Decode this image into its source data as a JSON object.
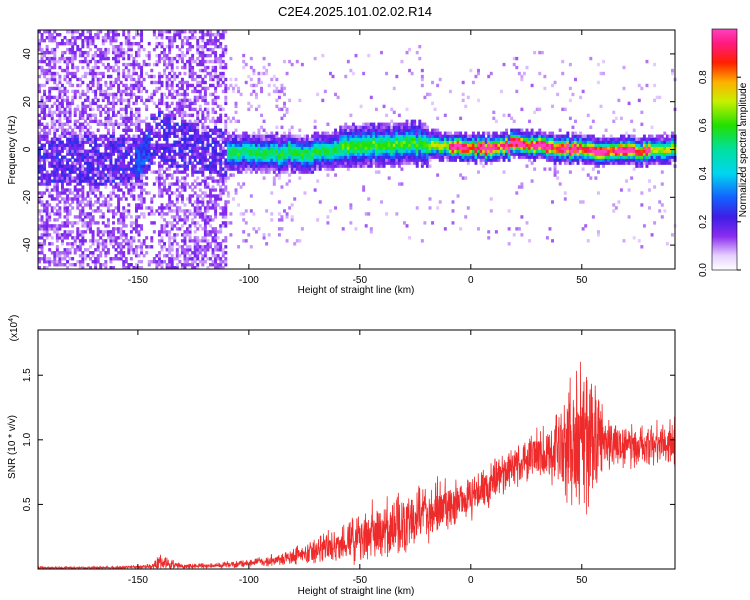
{
  "title": "C2E4.2025.101.02.02.R14",
  "colors": {
    "snr_line": "#ee2a2a",
    "axis": "#000000",
    "grid_tick": "#000000"
  },
  "chart_data": [
    {
      "type": "heatmap",
      "name": "spectrogram",
      "xlabel": "Height of straight line (km)",
      "ylabel": "Frequency (Hz)",
      "xlim": [
        -195,
        92
      ],
      "ylim": [
        -50,
        50
      ],
      "x_ticks": [
        -150,
        -100,
        -50,
        0,
        50
      ],
      "x_tick_labels": [
        "-150",
        "-100",
        "-50",
        "0",
        "50"
      ],
      "y_ticks": [
        -40,
        -20,
        0,
        20,
        40
      ],
      "y_tick_labels": [
        "-40",
        "-20",
        "0",
        "20",
        "40"
      ],
      "colorbar": {
        "label": "Normalized spectral amplitude",
        "range": [
          0,
          1
        ],
        "ticks": [
          0,
          0.2,
          0.4,
          0.6,
          0.8
        ],
        "tick_labels": [
          "0.0",
          "0.2",
          "0.4",
          "0.6",
          "0.8"
        ],
        "colormap": "rainbow (white-violet-blue-cyan-green-yellow-red-magenta)"
      },
      "band": {
        "description": "Narrow high-amplitude ridge near 0 Hz, broad low-amplitude scatter below -100 km",
        "center_track": [
          {
            "x": -150,
            "f": -5
          },
          {
            "x": -142,
            "f": 5
          },
          {
            "x": -120,
            "f": -2
          },
          {
            "x": -100,
            "f": -2
          },
          {
            "x": -75,
            "f": -2
          },
          {
            "x": -50,
            "f": 1
          },
          {
            "x": -25,
            "f": 2
          },
          {
            "x": 0,
            "f": 0
          },
          {
            "x": 25,
            "f": 1.5
          },
          {
            "x": 50,
            "f": -1
          },
          {
            "x": 75,
            "f": -1
          },
          {
            "x": 92,
            "f": 0
          }
        ]
      }
    },
    {
      "type": "line",
      "name": "snr",
      "xlabel": "Height of straight line (km)",
      "ylabel": "SNR (10 * v/v)",
      "y_multiplier": "(x10^4)",
      "y_multiplier_base": "(x10",
      "y_multiplier_exp": "4",
      "y_multiplier_tail": ")",
      "xlim": [
        -195,
        92
      ],
      "ylim": [
        0,
        1.85
      ],
      "x_ticks": [
        -150,
        -100,
        -50,
        0,
        50
      ],
      "x_tick_labels": [
        "-150",
        "-100",
        "-50",
        "0",
        "50"
      ],
      "y_ticks": [
        0.5,
        1.0,
        1.5
      ],
      "y_tick_labels": [
        "0.5",
        "1.0",
        "1.5"
      ],
      "envelope": {
        "x": [
          -195,
          -160,
          -145,
          -140,
          -130,
          -110,
          -90,
          -80,
          -70,
          -60,
          -50,
          -40,
          -30,
          -20,
          -10,
          0,
          10,
          20,
          30,
          40,
          45,
          50,
          55,
          60,
          70,
          80,
          92
        ],
        "mean": [
          0.01,
          0.01,
          0.02,
          0.05,
          0.02,
          0.03,
          0.06,
          0.1,
          0.14,
          0.18,
          0.24,
          0.3,
          0.36,
          0.42,
          0.48,
          0.55,
          0.68,
          0.8,
          0.88,
          0.93,
          0.98,
          1.0,
          0.99,
          0.97,
          0.95,
          0.95,
          0.95
        ],
        "spread": [
          0.01,
          0.01,
          0.02,
          0.08,
          0.02,
          0.03,
          0.05,
          0.08,
          0.12,
          0.18,
          0.22,
          0.25,
          0.28,
          0.28,
          0.22,
          0.2,
          0.2,
          0.18,
          0.22,
          0.35,
          0.6,
          0.8,
          0.6,
          0.3,
          0.18,
          0.18,
          0.2
        ]
      }
    }
  ]
}
